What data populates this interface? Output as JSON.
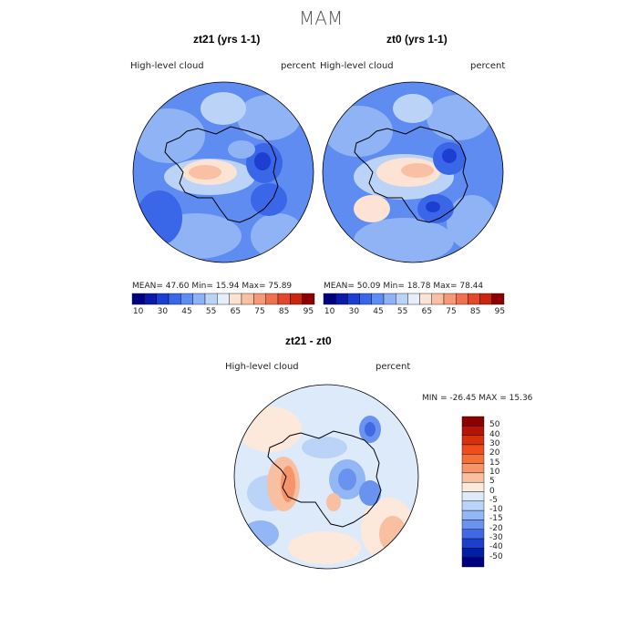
{
  "main_title": "MAM",
  "panels": [
    {
      "title": "zt21 (yrs 1-1)",
      "left_label": "High-level cloud",
      "right_label": "percent",
      "stats": "MEAN=   47.60   Min=   15.94   Max=   75.89",
      "colorbar_ticks": [
        "10",
        "30",
        "45",
        "55",
        "65",
        "75",
        "85",
        "95"
      ]
    },
    {
      "title": "zt0 (yrs 1-1)",
      "left_label": "High-level cloud",
      "right_label": "percent",
      "stats": "MEAN=   50.09   Min=   18.78   Max=   78.44",
      "colorbar_ticks": [
        "10",
        "30",
        "45",
        "55",
        "65",
        "75",
        "85",
        "95"
      ]
    }
  ],
  "diff_panel": {
    "title": "zt21 - zt0",
    "left_label": "High-level cloud",
    "right_label": "percent",
    "stats": "MIN = -26.45  MAX =   15.36",
    "colorbar_ticks": [
      "50",
      "40",
      "30",
      "20",
      "15",
      "10",
      "5",
      "0",
      "-5",
      "-10",
      "-15",
      "-20",
      "-30",
      "-40",
      "-50"
    ]
  },
  "colors": {
    "abs_scale": [
      "#00007f",
      "#0b1aa8",
      "#1d3fd1",
      "#3a66e8",
      "#5e8cf0",
      "#8fb3f5",
      "#bcd3f8",
      "#e6eefb",
      "#fde3d3",
      "#f9c0a4",
      "#f59a78",
      "#ee7250",
      "#e2492c",
      "#c8260f",
      "#8b0000"
    ],
    "diff_scale": [
      "#8b0000",
      "#b41408",
      "#d6300d",
      "#ef4d1c",
      "#f4703b",
      "#f6946a",
      "#f8bfa0",
      "#fce9dc",
      "#ddeafa",
      "#bcd3f8",
      "#93b6f4",
      "#6a93ef",
      "#4169e3",
      "#1b3fce",
      "#001fa6",
      "#00007f"
    ]
  }
}
